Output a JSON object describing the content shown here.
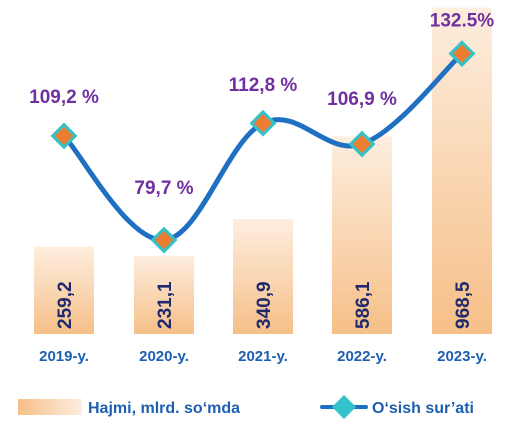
{
  "chart_data": {
    "type": "bar",
    "categories": [
      "2019-y.",
      "2020-y.",
      "2021-y.",
      "2022-y.",
      "2023-y."
    ],
    "series": [
      {
        "name": "Hajmi, mlrd. so‘mda",
        "type": "bar",
        "values": [
          259.2,
          231.1,
          340.9,
          586.1,
          968.5
        ],
        "labels": [
          "259,2",
          "231,1",
          "340,9",
          "586,1",
          "968,5"
        ]
      },
      {
        "name": "O‘sish sur’ati",
        "type": "line",
        "values": [
          109.2,
          79.7,
          112.8,
          106.9,
          132.5
        ],
        "labels": [
          "109,2 %",
          "79,7 %",
          "112,8 %",
          "106,9 %",
          "132.5%"
        ]
      }
    ],
    "legend_position": "bottom",
    "grid": false,
    "colors": {
      "bar_top": "#fdeedf",
      "bar_bottom": "#f6bf88",
      "line": "#1f6fc2",
      "marker_fill": "#ed7d31",
      "marker_border": "#33c2c9",
      "bar_label": "#1f2a6e",
      "category_label": "#1d5fb0",
      "rate_label": "#7030a0",
      "legend_bar_text": "#1d5fb0",
      "legend_line_text": "#1d5fb0"
    }
  }
}
